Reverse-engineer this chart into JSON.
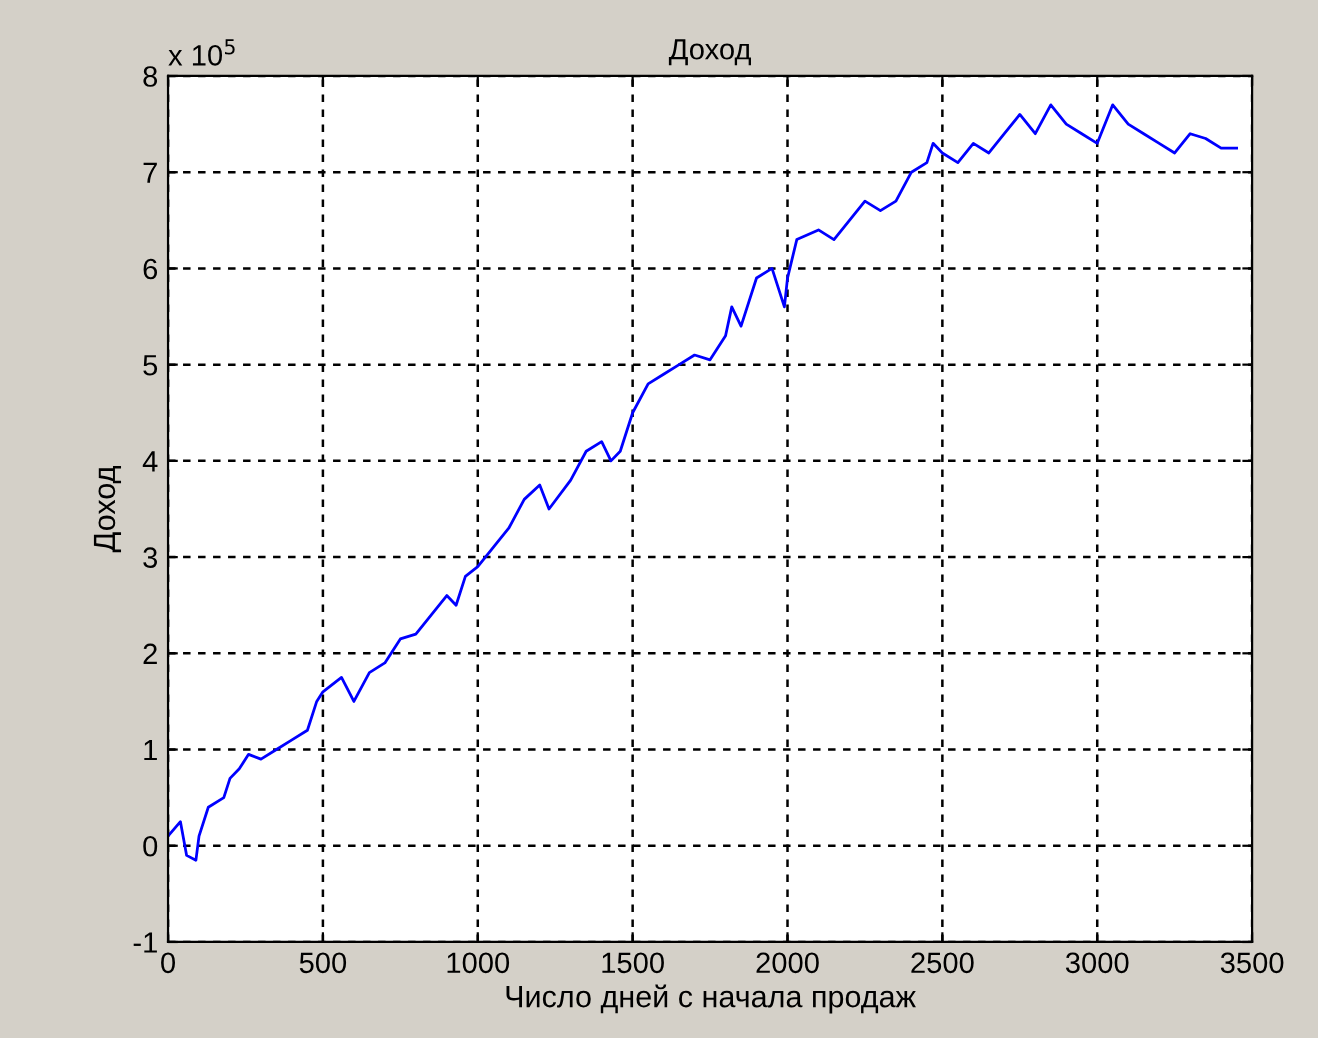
{
  "chart_data": {
    "type": "line",
    "title": "Доход",
    "xlabel": "Число дней с начала продаж",
    "ylabel": "Доход",
    "annotations": [
      "x 10$^{5}$"
    ],
    "x": [
      0,
      40,
      60,
      90,
      100,
      130,
      180,
      200,
      230,
      260,
      300,
      350,
      400,
      450,
      480,
      500,
      560,
      600,
      650,
      700,
      750,
      800,
      850,
      900,
      930,
      960,
      1000,
      1050,
      1100,
      1150,
      1200,
      1230,
      1300,
      1350,
      1400,
      1430,
      1460,
      1500,
      1550,
      1600,
      1650,
      1700,
      1750,
      1800,
      1820,
      1850,
      1900,
      1950,
      1990,
      2000,
      2030,
      2100,
      2150,
      2200,
      2250,
      2300,
      2350,
      2400,
      2450,
      2470,
      2500,
      2550,
      2600,
      2650,
      2700,
      2750,
      2800,
      2850,
      2900,
      2950,
      3000,
      3050,
      3100,
      3150,
      3200,
      3250,
      3300,
      3350,
      3400,
      3450
    ],
    "series": [
      {
        "color": "#0000ff",
        "values": [
          0.1,
          0.25,
          -0.1,
          -0.15,
          0.1,
          0.4,
          0.5,
          0.7,
          0.8,
          0.95,
          0.9,
          1.0,
          1.1,
          1.2,
          1.5,
          1.6,
          1.75,
          1.5,
          1.8,
          1.9,
          2.15,
          2.2,
          2.4,
          2.6,
          2.5,
          2.8,
          2.9,
          3.1,
          3.3,
          3.6,
          3.75,
          3.5,
          3.8,
          4.1,
          4.2,
          4.0,
          4.1,
          4.5,
          4.8,
          4.9,
          5.0,
          5.1,
          5.05,
          5.3,
          5.6,
          5.4,
          5.9,
          6.0,
          5.6,
          5.9,
          6.3,
          6.4,
          6.3,
          6.5,
          6.7,
          6.6,
          6.7,
          7.0,
          7.1,
          7.3,
          7.2,
          7.1,
          7.3,
          7.2,
          7.4,
          7.6,
          7.4,
          7.7,
          7.5,
          7.4,
          7.3,
          7.7,
          7.5,
          7.4,
          7.3,
          7.2,
          7.4,
          7.35,
          7.25,
          7.25
        ]
      }
    ],
    "xlim": [
      0,
      3500
    ],
    "xticks": [
      0,
      500,
      1000,
      1500,
      2000,
      2500,
      3000,
      3500
    ],
    "ylim": [
      -1,
      8
    ],
    "yticks": [
      -1,
      0,
      1,
      2,
      3,
      4,
      5,
      6,
      7,
      8
    ],
    "grid": true,
    "line_style": "solid",
    "marker": "none"
  }
}
